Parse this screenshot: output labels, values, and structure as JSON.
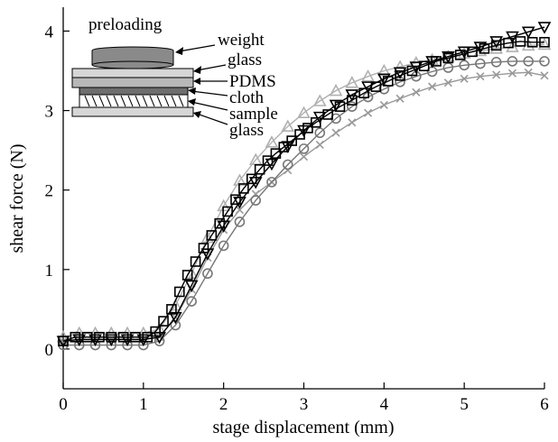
{
  "chart_data": {
    "type": "line",
    "title": "",
    "xlabel": "stage displacement (mm)",
    "ylabel": "shear force (N)",
    "xlim": [
      0,
      6
    ],
    "ylim": [
      -0.5,
      4.3
    ],
    "xticks": [
      0,
      1,
      2,
      3,
      4,
      5,
      6
    ],
    "yticks": [
      0,
      1,
      2,
      3,
      4
    ],
    "xtick_labels": [
      "0",
      "1",
      "2",
      "3",
      "4",
      "5",
      "6"
    ],
    "ytick_labels": [
      "0",
      "1",
      "2",
      "3",
      "4"
    ],
    "grid": false,
    "legend": "none",
    "series": [
      {
        "marker": "square",
        "color": "#000000",
        "x": [
          0.0,
          0.15,
          0.3,
          0.45,
          0.6,
          0.75,
          0.9,
          1.05,
          1.15,
          1.25,
          1.35,
          1.45,
          1.55,
          1.65,
          1.75,
          1.85,
          1.95,
          2.05,
          2.15,
          2.25,
          2.35,
          2.45,
          2.55,
          2.65,
          2.75,
          2.85,
          2.95,
          3.05,
          3.15,
          3.3,
          3.45,
          3.6,
          3.75,
          3.9,
          4.05,
          4.2,
          4.35,
          4.5,
          4.65,
          4.8,
          4.95,
          5.1,
          5.25,
          5.4,
          5.55,
          5.7,
          5.85,
          6.0
        ],
        "y": [
          0.1,
          0.15,
          0.15,
          0.15,
          0.15,
          0.15,
          0.15,
          0.15,
          0.22,
          0.35,
          0.5,
          0.72,
          0.93,
          1.1,
          1.27,
          1.43,
          1.58,
          1.73,
          1.88,
          2.02,
          2.14,
          2.26,
          2.37,
          2.46,
          2.54,
          2.62,
          2.7,
          2.78,
          2.85,
          2.95,
          3.05,
          3.13,
          3.22,
          3.3,
          3.37,
          3.44,
          3.5,
          3.56,
          3.62,
          3.66,
          3.7,
          3.74,
          3.78,
          3.82,
          3.85,
          3.87,
          3.86,
          3.86
        ]
      },
      {
        "marker": "triangle-down",
        "color": "#000000",
        "x": [
          0.0,
          0.2,
          0.4,
          0.6,
          0.8,
          1.0,
          1.2,
          1.4,
          1.6,
          1.8,
          2.0,
          2.2,
          2.4,
          2.6,
          2.8,
          3.0,
          3.2,
          3.4,
          3.6,
          3.8,
          4.0,
          4.2,
          4.4,
          4.6,
          4.8,
          5.0,
          5.2,
          5.4,
          5.6,
          5.8,
          6.0
        ],
        "y": [
          0.1,
          0.12,
          0.12,
          0.12,
          0.12,
          0.12,
          0.15,
          0.4,
          0.8,
          1.2,
          1.55,
          1.85,
          2.1,
          2.33,
          2.55,
          2.75,
          2.92,
          3.07,
          3.2,
          3.3,
          3.4,
          3.48,
          3.55,
          3.62,
          3.68,
          3.74,
          3.8,
          3.87,
          3.93,
          3.99,
          4.05
        ]
      },
      {
        "marker": "triangle-up",
        "color": "#b0b0b0",
        "x": [
          0.0,
          0.2,
          0.4,
          0.6,
          0.8,
          1.0,
          1.2,
          1.4,
          1.6,
          1.8,
          2.0,
          2.2,
          2.4,
          2.6,
          2.8,
          3.0,
          3.2,
          3.4,
          3.6,
          3.8,
          4.0,
          4.2,
          4.4,
          4.6,
          4.8,
          5.0,
          5.2,
          5.4,
          5.6,
          5.8,
          6.0
        ],
        "y": [
          0.15,
          0.2,
          0.2,
          0.2,
          0.2,
          0.2,
          0.25,
          0.55,
          0.95,
          1.4,
          1.8,
          2.12,
          2.38,
          2.6,
          2.8,
          2.97,
          3.12,
          3.25,
          3.35,
          3.43,
          3.5,
          3.55,
          3.6,
          3.64,
          3.68,
          3.72,
          3.75,
          3.78,
          3.8,
          3.82,
          3.83
        ]
      },
      {
        "marker": "circle",
        "color": "#777777",
        "x": [
          0.0,
          0.2,
          0.4,
          0.6,
          0.8,
          1.0,
          1.2,
          1.4,
          1.6,
          1.8,
          2.0,
          2.2,
          2.4,
          2.6,
          2.8,
          3.0,
          3.2,
          3.4,
          3.6,
          3.8,
          4.0,
          4.2,
          4.4,
          4.6,
          4.8,
          5.0,
          5.2,
          5.4,
          5.6,
          5.8,
          6.0
        ],
        "y": [
          0.05,
          0.05,
          0.05,
          0.05,
          0.05,
          0.05,
          0.1,
          0.3,
          0.6,
          0.95,
          1.3,
          1.6,
          1.87,
          2.1,
          2.32,
          2.52,
          2.72,
          2.9,
          3.05,
          3.17,
          3.27,
          3.36,
          3.43,
          3.49,
          3.54,
          3.57,
          3.59,
          3.61,
          3.62,
          3.62,
          3.62
        ]
      },
      {
        "marker": "x",
        "color": "#999999",
        "x": [
          0.0,
          0.2,
          0.4,
          0.6,
          0.8,
          1.0,
          1.2,
          1.4,
          1.6,
          1.8,
          2.0,
          2.2,
          2.4,
          2.6,
          2.8,
          3.0,
          3.2,
          3.4,
          3.6,
          3.8,
          4.0,
          4.2,
          4.4,
          4.6,
          4.8,
          5.0,
          5.2,
          5.4,
          5.6,
          5.8,
          6.0
        ],
        "y": [
          0.1,
          0.12,
          0.12,
          0.12,
          0.12,
          0.12,
          0.15,
          0.4,
          0.75,
          1.15,
          1.5,
          1.75,
          1.95,
          2.1,
          2.25,
          2.42,
          2.57,
          2.72,
          2.85,
          2.97,
          3.07,
          3.15,
          3.23,
          3.3,
          3.35,
          3.4,
          3.43,
          3.45,
          3.47,
          3.48,
          3.44
        ]
      }
    ]
  },
  "inset": {
    "labels": {
      "preloading": "preloading",
      "weight": "weight",
      "glass_top": "glass",
      "pdms": "PDMS",
      "cloth": "cloth",
      "sample": "sample",
      "glass_bottom": "glass"
    },
    "colors": {
      "weight_fill": "#8a8a8a",
      "glass_fill": "#d6d6d6",
      "pdms_fill": "#b8b8b8",
      "cloth_fill": "#6e6e6e",
      "sample_fill": "#ffffff",
      "sample_hatch": "#000000"
    }
  }
}
